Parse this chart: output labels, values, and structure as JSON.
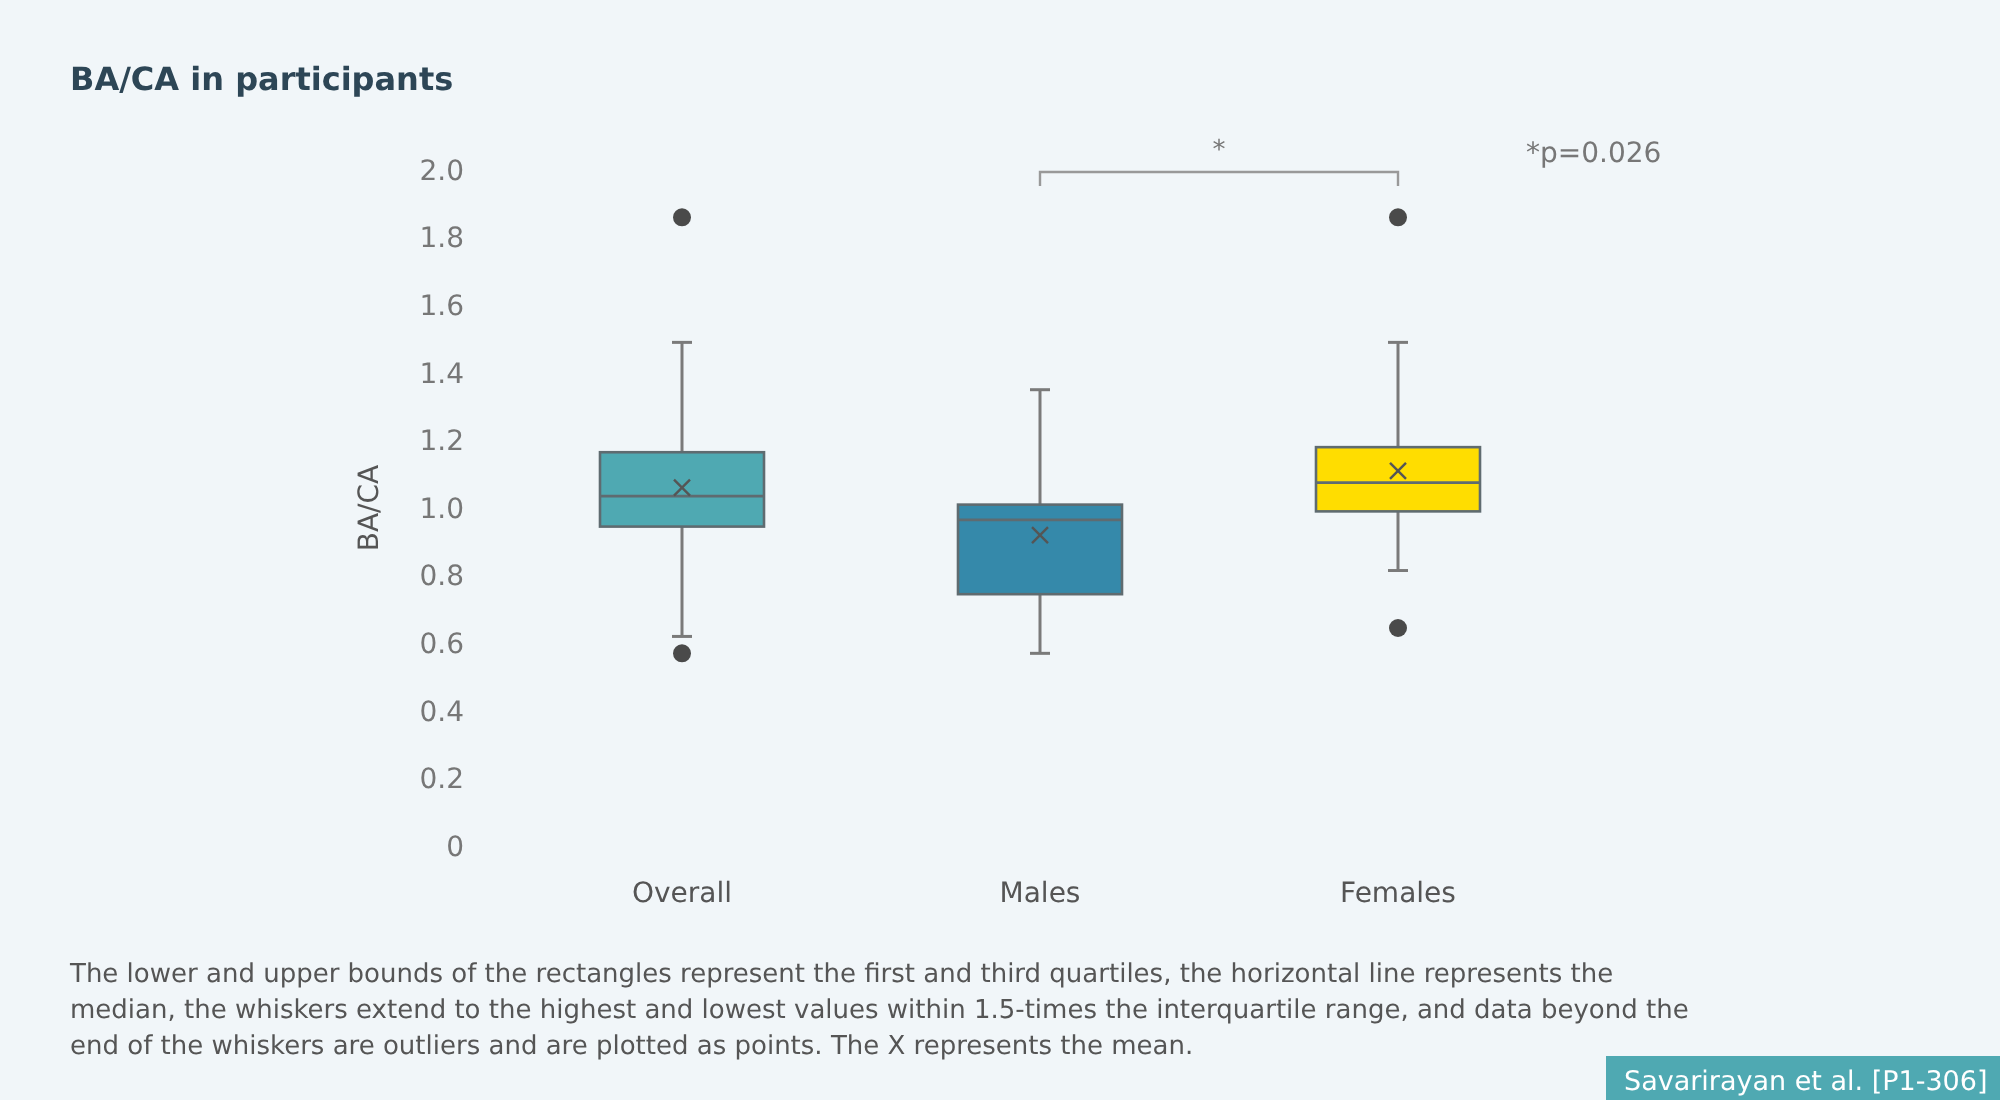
{
  "chart_data": {
    "type": "box",
    "title": "BA/CA in participants",
    "ylabel": "BA/CA",
    "categories": [
      "Overall",
      "Males",
      "Females"
    ],
    "colors": [
      "#4fa9b2",
      "#3589aa",
      "#ffdd00"
    ],
    "boxes": [
      {
        "low": 0.62,
        "q1": 0.945,
        "median": 1.035,
        "q3": 1.165,
        "high": 1.49,
        "mean": 1.06,
        "outliers": [
          1.86,
          0.57
        ]
      },
      {
        "low": 0.57,
        "q1": 0.745,
        "median": 0.965,
        "q3": 1.01,
        "high": 1.35,
        "mean": 0.92
      },
      {
        "low": 0.815,
        "q1": 0.99,
        "median": 1.075,
        "q3": 1.18,
        "high": 1.49,
        "mean": 1.11,
        "outliers": [
          1.86,
          0.645
        ]
      }
    ],
    "ylim": [
      0,
      2.0
    ],
    "yticks": [
      {
        "value": 0,
        "label": "0"
      },
      {
        "value": 0.2,
        "label": "0.2"
      },
      {
        "value": 0.4,
        "label": "0.4"
      },
      {
        "value": 0.6,
        "label": "0.6"
      },
      {
        "value": 0.8,
        "label": "0.8"
      },
      {
        "value": 1.0,
        "label": "1.0"
      },
      {
        "value": 1.2,
        "label": "1.2"
      },
      {
        "value": 1.4,
        "label": "1.4"
      },
      {
        "value": 1.6,
        "label": "1.6"
      },
      {
        "value": 1.8,
        "label": "1.8"
      },
      {
        "value": 2.0,
        "label": "2.0"
      }
    ],
    "grid": false,
    "annotations": [
      "*",
      "*p=0.026",
      "The lower and upper bounds of the rectangles represent the first and third quartiles, the horizontal line represents the median, the whiskers extend to the highest and lowest values within 1.5-times the interquartile range, and data beyond the end of the whiskers are outliers and are plotted as points. The X represents the mean.",
      "Savarirayan et al. [P1-306]"
    ]
  }
}
